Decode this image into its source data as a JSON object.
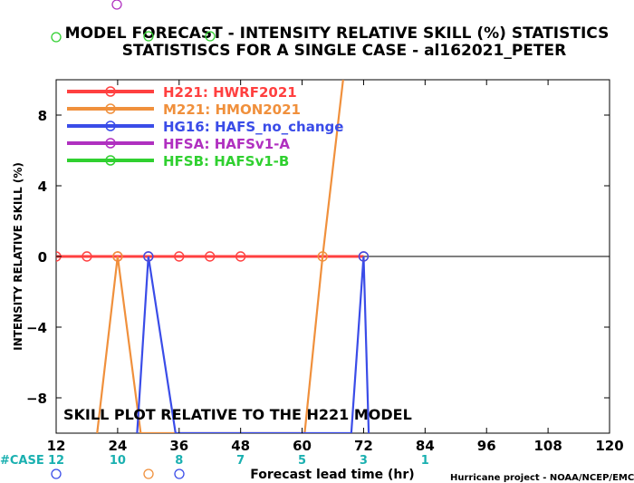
{
  "chart_data": {
    "type": "line",
    "title_line1": "MODEL FORECAST - INTENSITY RELATIVE SKILL (%) STATISTICS",
    "title_line2": "STATISTISCS FOR A SINGLE CASE - al162021_PETER",
    "xlabel": "Forecast lead time (hr)",
    "ylabel": "INTENSITY RELATIVE SKILL (%)",
    "xlim": [
      12,
      120
    ],
    "ylim": [
      -10,
      10
    ],
    "x_ticks": [
      12,
      24,
      36,
      48,
      60,
      72,
      84,
      96,
      108,
      120
    ],
    "y_ticks": [
      -8,
      -4,
      0,
      4,
      8
    ],
    "annotation": "SKILL PLOT RELATIVE TO THE H221 MODEL",
    "case_label": "#CASE",
    "case_counts": [
      {
        "x": 12,
        "n": "12"
      },
      {
        "x": 24,
        "n": "10"
      },
      {
        "x": 36,
        "n": "8"
      },
      {
        "x": 48,
        "n": "7"
      },
      {
        "x": 60,
        "n": "5"
      },
      {
        "x": 72,
        "n": "3"
      },
      {
        "x": 84,
        "n": "1"
      }
    ],
    "credit": "Hurricane project - NOAA/NCEP/EMC",
    "series": [
      {
        "name": "H221: HWRF2021",
        "color": "#ff4040",
        "x": [
          12,
          18,
          24,
          30,
          36,
          42,
          48,
          72
        ],
        "y": [
          0,
          0,
          0,
          0,
          0,
          0,
          0,
          0
        ]
      },
      {
        "name": "M221: HMON2021",
        "color": "#f0903c",
        "x": [
          20,
          24,
          28.5,
          60.5,
          64,
          68
        ],
        "y": [
          -10,
          0,
          -10,
          -10,
          0,
          10
        ]
      },
      {
        "name": "HG16: HAFS_no_change",
        "color": "#3a4ce8",
        "x": [
          27.8,
          30,
          35.3,
          69.6,
          72,
          73
        ],
        "y": [
          -10,
          0,
          -10,
          -10,
          0,
          -10
        ]
      },
      {
        "name": "HFSA: HAFSv1-A",
        "color": "#b030c0",
        "x": [],
        "y": []
      },
      {
        "name": "HFSB: HAFSv1-B",
        "color": "#30d030",
        "x": [],
        "y": []
      }
    ],
    "legend_position": "top-left",
    "grid": false,
    "zero_line": true
  }
}
